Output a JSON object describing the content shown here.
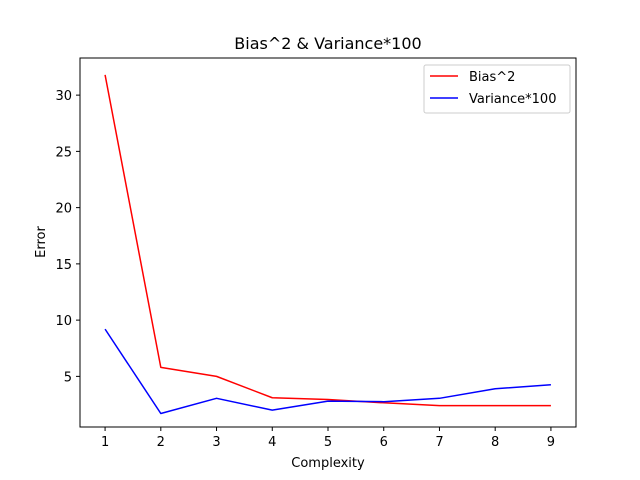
{
  "chart_data": {
    "type": "line",
    "title": "Bias^2 & Variance*100",
    "xlabel": "Complexity",
    "ylabel": "Error",
    "x": [
      1,
      2,
      3,
      4,
      5,
      6,
      7,
      8,
      9
    ],
    "xlim": [
      0.55,
      9.45
    ],
    "ylim": [
      0.5,
      33.3
    ],
    "xticks": [
      1,
      2,
      3,
      4,
      5,
      6,
      7,
      8,
      9
    ],
    "yticks": [
      5,
      10,
      15,
      20,
      25,
      30
    ],
    "grid": false,
    "legend": {
      "position": "top-right"
    },
    "series": [
      {
        "name": "Bias^2",
        "color": "#ff0000",
        "values": [
          31.8,
          5.8,
          5.0,
          3.1,
          2.95,
          2.65,
          2.4,
          2.4,
          2.4
        ]
      },
      {
        "name": "Variance*100",
        "color": "#0000ff",
        "values": [
          9.2,
          1.7,
          3.05,
          2.0,
          2.8,
          2.75,
          3.05,
          3.9,
          4.25
        ]
      }
    ]
  }
}
